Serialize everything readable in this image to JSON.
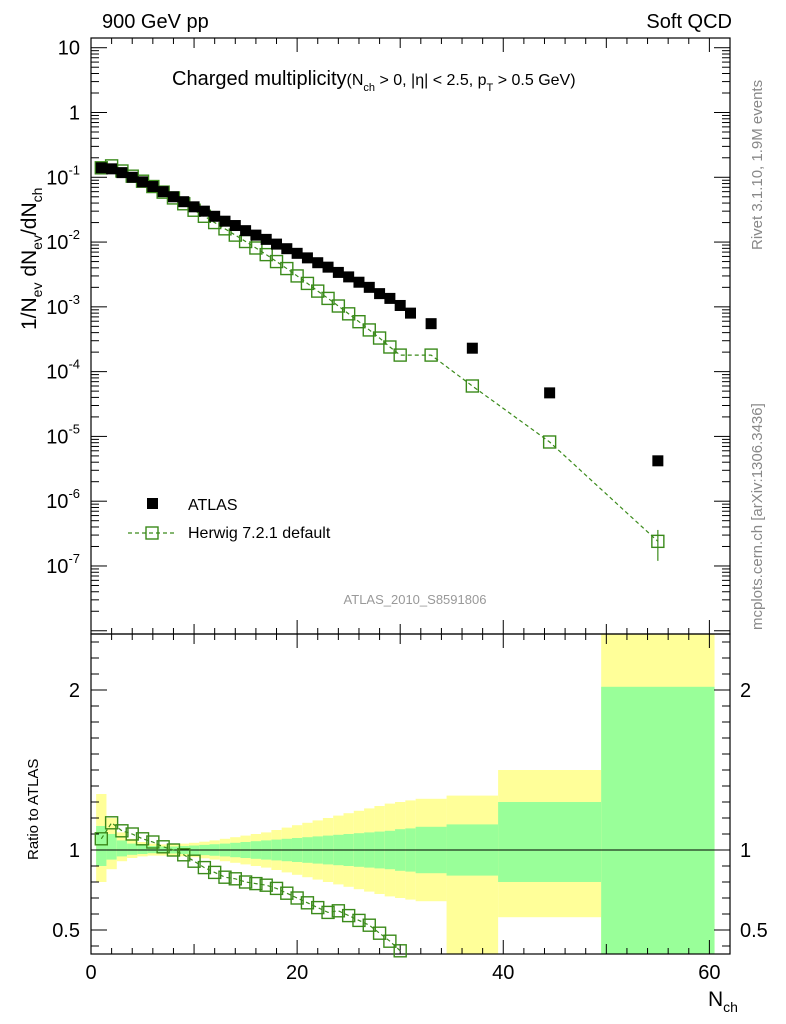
{
  "header": {
    "left": "900 GeV pp",
    "right": "Soft QCD"
  },
  "side": {
    "rivet": "Rivet 3.1.10,  1.9M events",
    "site": "mcplots.cern.ch [arXiv:1306.3436]"
  },
  "colors": {
    "atlas": "#000000",
    "herwig": "#3a8a1a",
    "band_inner": "#99ff99",
    "band_outer": "#ffff99"
  },
  "chart_data": {
    "type": "scatter",
    "title": {
      "main": "Charged multiplicity",
      "paren_open": "(N",
      "sub_ch": "ch",
      "mid1": " > 0, |η| < 2.5, p",
      "sub_T": "T",
      "mid2": " > 0.5 GeV)"
    },
    "ylabel": {
      "p1": "1/N",
      "s1": "ev",
      "p2": " dN",
      "s2": "ev",
      "p3": "/dN",
      "s3": "ch"
    },
    "xlabel": {
      "main": "N",
      "sub": "ch"
    },
    "ratio_ylabel": "Ratio to ATLAS",
    "watermark": "ATLAS_2010_S8591806",
    "xlim": [
      0,
      62
    ],
    "ylim_log10": [
      -8.05,
      1.15
    ],
    "ratio_ylim": [
      0.35,
      2.35
    ],
    "x_ticks": [
      "0",
      "20",
      "40",
      "60"
    ],
    "ratio_ticks": [
      "0.5",
      "1",
      "2"
    ],
    "y_ticks": [
      {
        "base": "10",
        "exp": "-7",
        "value": -7
      },
      {
        "base": "10",
        "exp": "-6",
        "value": -6
      },
      {
        "base": "10",
        "exp": "-5",
        "value": -5
      },
      {
        "base": "10",
        "exp": "-4",
        "value": -4
      },
      {
        "base": "10",
        "exp": "-3",
        "value": -3
      },
      {
        "base": "10",
        "exp": "-2",
        "value": -2
      },
      {
        "base": "10",
        "exp": "-1",
        "value": -1
      },
      {
        "base": "1",
        "exp": "",
        "value": 0
      },
      {
        "base": "10",
        "exp": "",
        "value": 1
      }
    ],
    "legend": [
      {
        "name": "ATLAS"
      },
      {
        "name": "Herwig 7.2.1 default"
      }
    ],
    "atlas": {
      "x": [
        1,
        2,
        3,
        4,
        5,
        6,
        7,
        8,
        9,
        10,
        11,
        12,
        13,
        14,
        15,
        16,
        17,
        18,
        19,
        20,
        21,
        22,
        23,
        24,
        25,
        26,
        27,
        28,
        29,
        30,
        31,
        33,
        37,
        44.5,
        55
      ],
      "y": [
        0.14,
        0.135,
        0.118,
        0.1,
        0.085,
        0.072,
        0.06,
        0.05,
        0.042,
        0.035,
        0.03,
        0.025,
        0.021,
        0.018,
        0.015,
        0.0128,
        0.011,
        0.0093,
        0.0079,
        0.0067,
        0.0057,
        0.0048,
        0.0041,
        0.0034,
        0.0029,
        0.0024,
        0.002,
        0.0016,
        0.00135,
        0.00105,
        0.0008,
        0.00055,
        0.00023,
        4.7e-05,
        4.2e-06
      ]
    },
    "herwig": {
      "x": [
        1,
        2,
        3,
        4,
        5,
        6,
        7,
        8,
        9,
        10,
        11,
        12,
        13,
        14,
        15,
        16,
        17,
        18,
        19,
        20,
        21,
        22,
        23,
        24,
        25,
        26,
        27,
        28,
        29,
        30,
        33,
        37,
        44.5,
        55
      ],
      "y": [
        0.14,
        0.15,
        0.125,
        0.104,
        0.087,
        0.072,
        0.059,
        0.048,
        0.039,
        0.031,
        0.025,
        0.02,
        0.016,
        0.0128,
        0.0102,
        0.0081,
        0.0064,
        0.005,
        0.0039,
        0.003,
        0.0023,
        0.00175,
        0.00135,
        0.00103,
        0.00078,
        0.00059,
        0.00044,
        0.00033,
        0.00024,
        0.00018,
        0.00018,
        6e-05,
        8.2e-06,
        2.4e-07
      ],
      "yerr_last": 1.2e-07
    },
    "ratio_herwig": {
      "x": [
        1,
        2,
        3,
        4,
        5,
        6,
        7,
        8,
        9,
        10,
        11,
        12,
        13,
        14,
        15,
        16,
        17,
        18,
        19,
        20,
        21,
        22,
        23,
        24,
        25,
        26,
        27,
        28,
        29,
        30
      ],
      "y": [
        1.07,
        1.17,
        1.12,
        1.1,
        1.07,
        1.05,
        1.02,
        1.0,
        0.97,
        0.93,
        0.89,
        0.86,
        0.83,
        0.82,
        0.8,
        0.79,
        0.78,
        0.76,
        0.73,
        0.7,
        0.67,
        0.64,
        0.61,
        0.62,
        0.59,
        0.56,
        0.53,
        0.48,
        0.43,
        0.37
      ]
    },
    "bands": [
      {
        "x0": 0.5,
        "x1": 1.5,
        "in_lo": 0.9,
        "in_hi": 1.15,
        "out_lo": 0.8,
        "out_hi": 1.35
      },
      {
        "x0": 1.5,
        "x1": 2.5,
        "in_lo": 0.94,
        "in_hi": 1.1,
        "out_lo": 0.88,
        "out_hi": 1.2
      },
      {
        "x0": 2.5,
        "x1": 3.5,
        "in_lo": 0.96,
        "in_hi": 1.06,
        "out_lo": 0.93,
        "out_hi": 1.11
      },
      {
        "x0": 3.5,
        "x1": 4.5,
        "in_lo": 0.97,
        "in_hi": 1.04,
        "out_lo": 0.95,
        "out_hi": 1.07
      },
      {
        "x0": 4.5,
        "x1": 5.5,
        "in_lo": 0.975,
        "in_hi": 1.03,
        "out_lo": 0.96,
        "out_hi": 1.05
      },
      {
        "x0": 5.5,
        "x1": 6.5,
        "in_lo": 0.98,
        "in_hi": 1.025,
        "out_lo": 0.965,
        "out_hi": 1.04
      },
      {
        "x0": 6.5,
        "x1": 7.5,
        "in_lo": 0.98,
        "in_hi": 1.022,
        "out_lo": 0.965,
        "out_hi": 1.035
      },
      {
        "x0": 7.5,
        "x1": 8.5,
        "in_lo": 0.978,
        "in_hi": 1.022,
        "out_lo": 0.962,
        "out_hi": 1.035
      },
      {
        "x0": 8.5,
        "x1": 9.5,
        "in_lo": 0.975,
        "in_hi": 1.025,
        "out_lo": 0.96,
        "out_hi": 1.04
      },
      {
        "x0": 9.5,
        "x1": 10.5,
        "in_lo": 0.972,
        "in_hi": 1.028,
        "out_lo": 0.955,
        "out_hi": 1.045
      },
      {
        "x0": 10.5,
        "x1": 11.5,
        "in_lo": 0.968,
        "in_hi": 1.032,
        "out_lo": 0.948,
        "out_hi": 1.052
      },
      {
        "x0": 11.5,
        "x1": 12.5,
        "in_lo": 0.964,
        "in_hi": 1.036,
        "out_lo": 0.94,
        "out_hi": 1.06
      },
      {
        "x0": 12.5,
        "x1": 13.5,
        "in_lo": 0.96,
        "in_hi": 1.04,
        "out_lo": 0.93,
        "out_hi": 1.07
      },
      {
        "x0": 13.5,
        "x1": 14.5,
        "in_lo": 0.955,
        "in_hi": 1.045,
        "out_lo": 0.92,
        "out_hi": 1.08
      },
      {
        "x0": 14.5,
        "x1": 15.5,
        "in_lo": 0.95,
        "in_hi": 1.05,
        "out_lo": 0.91,
        "out_hi": 1.09
      },
      {
        "x0": 15.5,
        "x1": 16.5,
        "in_lo": 0.945,
        "in_hi": 1.055,
        "out_lo": 0.9,
        "out_hi": 1.1
      },
      {
        "x0": 16.5,
        "x1": 17.5,
        "in_lo": 0.94,
        "in_hi": 1.06,
        "out_lo": 0.89,
        "out_hi": 1.11
      },
      {
        "x0": 17.5,
        "x1": 18.5,
        "in_lo": 0.935,
        "in_hi": 1.065,
        "out_lo": 0.875,
        "out_hi": 1.125
      },
      {
        "x0": 18.5,
        "x1": 19.5,
        "in_lo": 0.93,
        "in_hi": 1.07,
        "out_lo": 0.86,
        "out_hi": 1.14
      },
      {
        "x0": 19.5,
        "x1": 20.5,
        "in_lo": 0.925,
        "in_hi": 1.075,
        "out_lo": 0.845,
        "out_hi": 1.155
      },
      {
        "x0": 20.5,
        "x1": 21.5,
        "in_lo": 0.92,
        "in_hi": 1.08,
        "out_lo": 0.83,
        "out_hi": 1.17
      },
      {
        "x0": 21.5,
        "x1": 22.5,
        "in_lo": 0.915,
        "in_hi": 1.085,
        "out_lo": 0.815,
        "out_hi": 1.185
      },
      {
        "x0": 22.5,
        "x1": 23.5,
        "in_lo": 0.91,
        "in_hi": 1.09,
        "out_lo": 0.8,
        "out_hi": 1.2
      },
      {
        "x0": 23.5,
        "x1": 24.5,
        "in_lo": 0.905,
        "in_hi": 1.095,
        "out_lo": 0.785,
        "out_hi": 1.215
      },
      {
        "x0": 24.5,
        "x1": 25.5,
        "in_lo": 0.9,
        "in_hi": 1.1,
        "out_lo": 0.77,
        "out_hi": 1.23
      },
      {
        "x0": 25.5,
        "x1": 26.5,
        "in_lo": 0.895,
        "in_hi": 1.105,
        "out_lo": 0.755,
        "out_hi": 1.245
      },
      {
        "x0": 26.5,
        "x1": 27.5,
        "in_lo": 0.89,
        "in_hi": 1.11,
        "out_lo": 0.74,
        "out_hi": 1.26
      },
      {
        "x0": 27.5,
        "x1": 28.5,
        "in_lo": 0.885,
        "in_hi": 1.115,
        "out_lo": 0.725,
        "out_hi": 1.275
      },
      {
        "x0": 28.5,
        "x1": 29.5,
        "in_lo": 0.88,
        "in_hi": 1.12,
        "out_lo": 0.71,
        "out_hi": 1.29
      },
      {
        "x0": 29.5,
        "x1": 30.5,
        "in_lo": 0.87,
        "in_hi": 1.13,
        "out_lo": 0.7,
        "out_hi": 1.3
      },
      {
        "x0": 30.5,
        "x1": 31.5,
        "in_lo": 0.865,
        "in_hi": 1.135,
        "out_lo": 0.69,
        "out_hi": 1.31
      },
      {
        "x0": 31.5,
        "x1": 34.5,
        "in_lo": 0.855,
        "in_hi": 1.145,
        "out_lo": 0.68,
        "out_hi": 1.32
      },
      {
        "x0": 34.5,
        "x1": 39.5,
        "in_lo": 0.84,
        "in_hi": 1.16,
        "out_lo": 0.3,
        "out_hi": 1.34
      },
      {
        "x0": 39.5,
        "x1": 49.5,
        "in_lo": 0.8,
        "in_hi": 1.3,
        "out_lo": 0.58,
        "out_hi": 1.5
      },
      {
        "x0": 49.5,
        "x1": 60.5,
        "in_lo": 0.3,
        "in_hi": 2.02,
        "out_lo": 0.3,
        "out_hi": 2.5
      }
    ]
  }
}
